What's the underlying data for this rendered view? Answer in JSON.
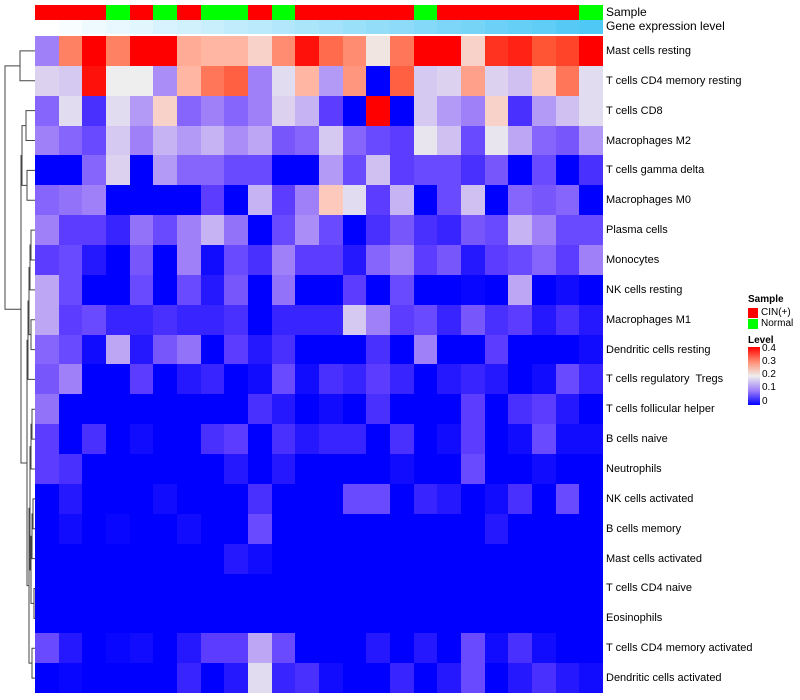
{
  "annotations": {
    "sample_label": "Sample",
    "gene_label": "Gene expression level"
  },
  "legend": {
    "sample_title": "Sample",
    "sample_items": [
      {
        "label": "CIN(+)",
        "color": "#FF0000"
      },
      {
        "label": "Normal",
        "color": "#00FF00"
      }
    ],
    "level_title": "Level",
    "level_ticks": [
      "0.4",
      "0.3",
      "0.2",
      "0.1",
      "0"
    ]
  },
  "chart_data": {
    "type": "heatmap",
    "title": "",
    "value_range": [
      0,
      0.4
    ],
    "colors": {
      "low": "#0000FF",
      "mid": "#EEEEEE",
      "high": "#FF0000",
      "gene_low": "#FFFFFF",
      "gene_high": "#4FC8F5"
    },
    "columns_sample": [
      "CIN(+)",
      "CIN(+)",
      "CIN(+)",
      "Normal",
      "CIN(+)",
      "Normal",
      "CIN(+)",
      "Normal",
      "Normal",
      "CIN(+)",
      "Normal",
      "CIN(+)",
      "CIN(+)",
      "CIN(+)",
      "CIN(+)",
      "CIN(+)",
      "Normal",
      "CIN(+)",
      "CIN(+)",
      "CIN(+)",
      "CIN(+)",
      "CIN(+)",
      "CIN(+)",
      "Normal"
    ],
    "gene_expression_level": [
      0,
      0.04,
      0.09,
      0.13,
      0.17,
      0.22,
      0.26,
      0.3,
      0.35,
      0.39,
      0.43,
      0.48,
      0.52,
      0.57,
      0.61,
      0.65,
      0.7,
      0.74,
      0.78,
      0.83,
      0.87,
      0.91,
      0.96,
      1
    ],
    "rows": [
      "Mast cells resting",
      "T cells CD4 memory resting",
      "T cells CD8",
      "Macrophages M2",
      "T cells gamma delta",
      "Macrophages M0",
      "Plasma cells",
      "Monocytes",
      "NK cells resting",
      "Macrophages M1",
      "Dendritic cells resting",
      "T cells regulatory  Tregs",
      "T cells follicular helper",
      "B cells naive",
      "Neutrophils",
      "NK cells activated",
      "B cells memory",
      "Mast cells activated",
      "T cells CD4 naive",
      "Eosinophils",
      "T cells CD4 memory activated",
      "Dendritic cells activated"
    ],
    "values": [
      [
        0.1,
        0.31,
        0.4,
        0.31,
        0.4,
        0.4,
        0.27,
        0.26,
        0.26,
        0.23,
        0.3,
        0.39,
        0.33,
        0.3,
        0.21,
        0.32,
        0.4,
        0.4,
        0.23,
        0.37,
        0.38,
        0.35,
        0.36,
        0.4
      ],
      [
        0.17,
        0.16,
        0.39,
        0.2,
        0.2,
        0.11,
        0.26,
        0.32,
        0.34,
        0.1,
        0.18,
        0.26,
        0.12,
        0.29,
        0,
        0.34,
        0.16,
        0.17,
        0.28,
        0.17,
        0.15,
        0.24,
        0.32,
        0.18
      ],
      [
        0.08,
        0.18,
        0.04,
        0.18,
        0.12,
        0.23,
        0.08,
        0.1,
        0.08,
        0.1,
        0.17,
        0.14,
        0.05,
        0,
        0.4,
        0,
        0.16,
        0.12,
        0.1,
        0.23,
        0.04,
        0.12,
        0.15,
        0.18
      ],
      [
        0.1,
        0.08,
        0.06,
        0.16,
        0.1,
        0.14,
        0.12,
        0.14,
        0.11,
        0.13,
        0.07,
        0.08,
        0.16,
        0.08,
        0.06,
        0.05,
        0.19,
        0.15,
        0.06,
        0.19,
        0.13,
        0.08,
        0.07,
        0.12
      ],
      [
        0,
        0,
        0.08,
        0.17,
        0,
        0.12,
        0.08,
        0.08,
        0.06,
        0.06,
        0,
        0,
        0.12,
        0.06,
        0.15,
        0.05,
        0.06,
        0.06,
        0.04,
        0.07,
        0,
        0.06,
        0,
        0.04
      ],
      [
        0.08,
        0.09,
        0.1,
        0,
        0,
        0,
        0,
        0.05,
        0,
        0.14,
        0.05,
        0.1,
        0.24,
        0.18,
        0.05,
        0.14,
        0,
        0.06,
        0.15,
        0,
        0.08,
        0.07,
        0.08,
        0
      ],
      [
        0.1,
        0.05,
        0.05,
        0.03,
        0.09,
        0.06,
        0.1,
        0.14,
        0.09,
        0,
        0.06,
        0.11,
        0.06,
        0,
        0.04,
        0.07,
        0.04,
        0.03,
        0.07,
        0.06,
        0.14,
        0.1,
        0.06,
        0.06
      ],
      [
        0.05,
        0.06,
        0.02,
        0,
        0.07,
        0,
        0.1,
        0.01,
        0.06,
        0.04,
        0.1,
        0.05,
        0.05,
        0.02,
        0.08,
        0.1,
        0.05,
        0.07,
        0.02,
        0.05,
        0.06,
        0.08,
        0.05,
        0.1
      ],
      [
        0.13,
        0.06,
        0,
        0,
        0.06,
        0,
        0.06,
        0.02,
        0.07,
        0,
        0.09,
        0,
        0,
        0.05,
        0,
        0.06,
        0,
        0,
        0.005,
        0,
        0.13,
        0,
        0.01,
        0
      ],
      [
        0.13,
        0.05,
        0.06,
        0.03,
        0.03,
        0.04,
        0.03,
        0.03,
        0.04,
        0,
        0.03,
        0.03,
        0.03,
        0.16,
        0.1,
        0.05,
        0.06,
        0.03,
        0.07,
        0.04,
        0.05,
        0.02,
        0.04,
        0.02
      ],
      [
        0.08,
        0.06,
        0.01,
        0.13,
        0.02,
        0.07,
        0.09,
        0,
        0.05,
        0.02,
        0.04,
        0,
        0,
        0,
        0.04,
        0,
        0.1,
        0,
        0,
        0.05,
        0,
        0,
        0,
        0.01
      ],
      [
        0.07,
        0.1,
        0,
        0,
        0.05,
        0,
        0.02,
        0.03,
        0,
        0.01,
        0.06,
        0.01,
        0.04,
        0.03,
        0.05,
        0.03,
        0,
        0.02,
        0.03,
        0.02,
        0,
        0.01,
        0.06,
        0.03
      ],
      [
        0.09,
        0,
        0,
        0,
        0,
        0,
        0,
        0,
        0,
        0.04,
        0.02,
        0,
        0.01,
        0,
        0.04,
        0,
        0,
        0,
        0.05,
        0,
        0.04,
        0.05,
        0.02,
        0
      ],
      [
        0.05,
        0,
        0.04,
        0,
        0.01,
        0,
        0,
        0.04,
        0.05,
        0,
        0.04,
        0.02,
        0.03,
        0.03,
        0,
        0.04,
        0,
        0.01,
        0.05,
        0,
        0.01,
        0.06,
        0.01,
        0.01
      ],
      [
        0.05,
        0.04,
        0,
        0,
        0,
        0,
        0,
        0,
        0.02,
        0,
        0.02,
        0,
        0,
        0,
        0,
        0.01,
        0,
        0,
        0.06,
        0,
        0,
        0.01,
        0,
        0
      ],
      [
        0,
        0.02,
        0,
        0,
        0,
        0.01,
        0,
        0,
        0,
        0.04,
        0,
        0,
        0,
        0.06,
        0.06,
        0,
        0.03,
        0.02,
        0,
        0.01,
        0.04,
        0,
        0.06,
        0
      ],
      [
        0,
        0.01,
        0,
        0.005,
        0,
        0,
        0.01,
        0,
        0,
        0.06,
        0,
        0,
        0,
        0,
        0,
        0,
        0,
        0,
        0,
        0.02,
        0,
        0,
        0,
        0
      ],
      [
        0,
        0,
        0,
        0,
        0,
        0,
        0,
        0,
        0.02,
        0.01,
        0,
        0,
        0,
        0,
        0,
        0,
        0,
        0,
        0,
        0,
        0,
        0,
        0,
        0
      ],
      [
        0,
        0,
        0,
        0,
        0,
        0,
        0,
        0,
        0,
        0,
        0,
        0,
        0,
        0,
        0,
        0,
        0,
        0,
        0,
        0,
        0,
        0,
        0,
        0
      ],
      [
        0,
        0,
        0,
        0,
        0,
        0,
        0,
        0,
        0,
        0,
        0,
        0,
        0,
        0,
        0,
        0,
        0,
        0,
        0,
        0,
        0,
        0,
        0,
        0
      ],
      [
        0.06,
        0.02,
        0,
        0.005,
        0.01,
        0,
        0.02,
        0.05,
        0.05,
        0.13,
        0.06,
        0,
        0,
        0,
        0.02,
        0,
        0.02,
        0,
        0.06,
        0.01,
        0.04,
        0.01,
        0,
        0
      ],
      [
        0,
        0.005,
        0,
        0,
        0,
        0,
        0.03,
        0,
        0.02,
        0.18,
        0.03,
        0.04,
        0.01,
        0,
        0,
        0.03,
        0,
        0.02,
        0.06,
        0,
        0.02,
        0.04,
        0.02,
        0.01
      ]
    ]
  }
}
